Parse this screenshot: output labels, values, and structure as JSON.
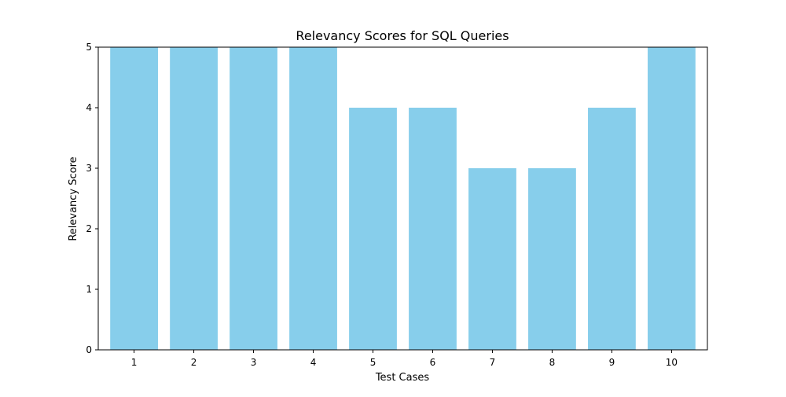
{
  "chart_data": {
    "type": "bar",
    "title": "Relevancy Scores for SQL Queries",
    "xlabel": "Test Cases",
    "ylabel": "Relevancy Score",
    "categories": [
      "1",
      "2",
      "3",
      "4",
      "5",
      "6",
      "7",
      "8",
      "9",
      "10"
    ],
    "values": [
      5,
      5,
      5,
      5,
      4,
      4,
      3,
      3,
      4,
      5
    ],
    "ylim": [
      0,
      5
    ],
    "yticks": [
      0,
      1,
      2,
      3,
      4,
      5
    ],
    "ytick_labels": [
      "0",
      "1",
      "2",
      "3",
      "4",
      "5"
    ],
    "bar_color": "#87ceeb",
    "grid": false,
    "legend": "none"
  }
}
